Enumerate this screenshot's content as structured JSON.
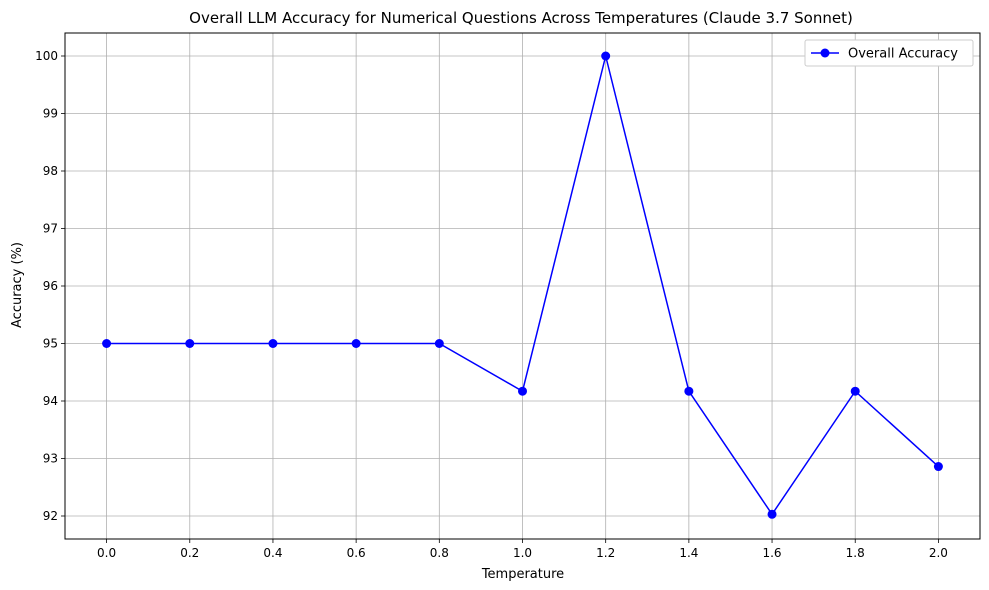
{
  "chart_data": {
    "type": "line",
    "title": "Overall LLM Accuracy for Numerical Questions Across Temperatures (Claude 3.7 Sonnet)",
    "xlabel": "Temperature",
    "ylabel": "Accuracy (%)",
    "x": [
      0.0,
      0.2,
      0.4,
      0.6,
      0.8,
      1.0,
      1.2,
      1.4,
      1.6,
      1.8,
      2.0
    ],
    "x_ticks": [
      "0.0",
      "0.2",
      "0.4",
      "0.6",
      "0.8",
      "1.0",
      "1.2",
      "1.4",
      "1.6",
      "1.8",
      "2.0"
    ],
    "y_ticks": [
      "92",
      "93",
      "94",
      "95",
      "96",
      "97",
      "98",
      "99",
      "100"
    ],
    "xlim": [
      -0.1,
      2.1
    ],
    "ylim": [
      91.6,
      100.4
    ],
    "grid": true,
    "legend_position": "top-right",
    "series": [
      {
        "name": "Overall Accuracy",
        "color": "#0000ff",
        "marker": "circle",
        "values": [
          95.0,
          95.0,
          95.0,
          95.0,
          95.0,
          94.17,
          100.0,
          94.17,
          92.03,
          94.17,
          92.86
        ]
      }
    ]
  }
}
